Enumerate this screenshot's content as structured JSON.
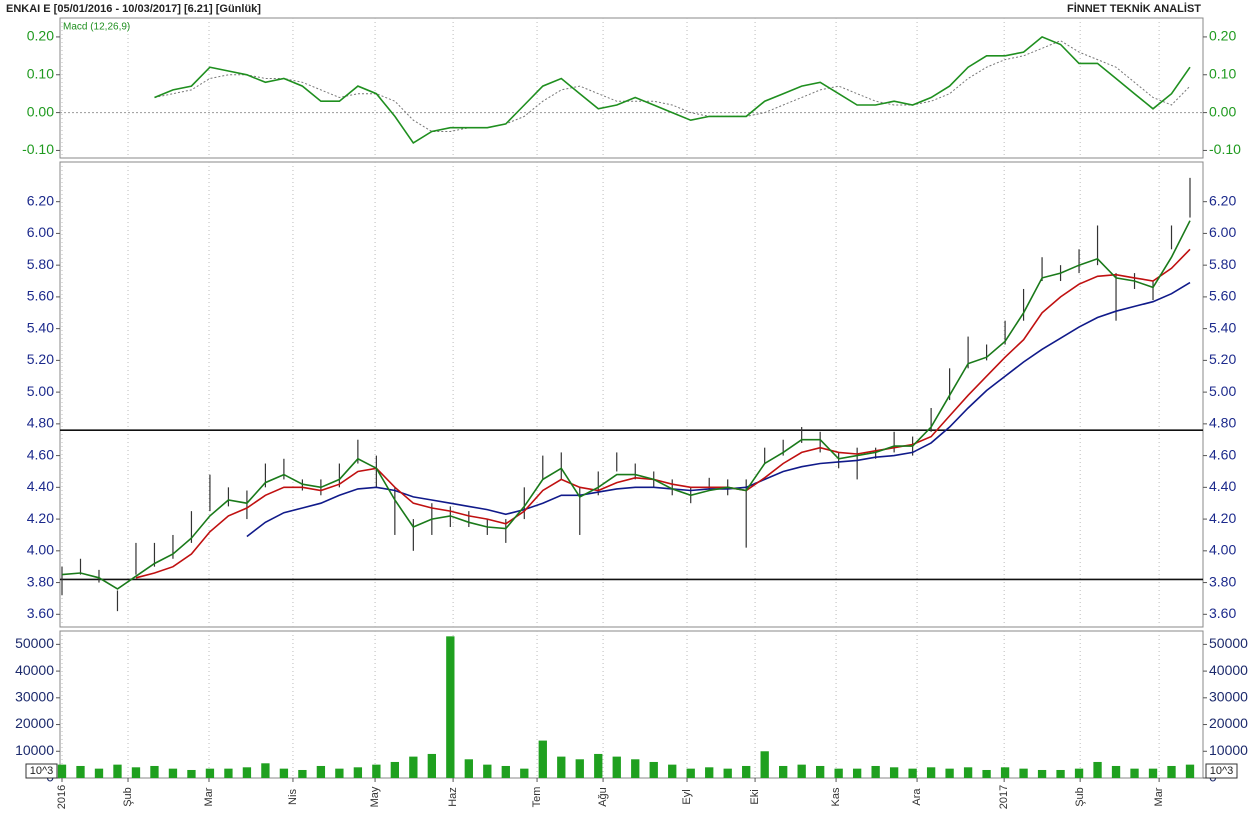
{
  "header": {
    "title": "ENKAI E  [05/01/2016 - 10/03/2017]  [6.21]  [Günlük]",
    "brand": "FİNNET TEKNİK ANALİST"
  },
  "chart_data": [
    {
      "type": "line",
      "label": "Macd (12,26,9)",
      "series": [
        {
          "name": "Macd (12,26,9)",
          "color": "#1f8f1f",
          "values": [
            null,
            null,
            null,
            null,
            null,
            0.04,
            0.06,
            0.07,
            0.12,
            0.11,
            0.1,
            0.08,
            0.09,
            0.07,
            0.03,
            0.03,
            0.07,
            0.05,
            -0.01,
            -0.08,
            -0.05,
            -0.04,
            -0.04,
            -0.04,
            -0.03,
            0.02,
            0.07,
            0.09,
            0.05,
            0.01,
            0.02,
            0.04,
            0.02,
            0.0,
            -0.02,
            -0.01,
            -0.01,
            -0.01,
            0.03,
            0.05,
            0.07,
            0.08,
            0.05,
            0.02,
            0.02,
            0.03,
            0.02,
            0.04,
            0.07,
            0.12,
            0.15,
            0.15,
            0.16,
            0.2,
            0.18,
            0.13,
            0.13,
            0.09,
            0.05,
            0.01,
            0.05,
            0.12
          ]
        },
        {
          "color": "#777777",
          "dashed": true,
          "values": [
            null,
            null,
            null,
            null,
            null,
            0.04,
            0.05,
            0.06,
            0.09,
            0.1,
            0.1,
            0.09,
            0.09,
            0.08,
            0.06,
            0.04,
            0.05,
            0.05,
            0.03,
            -0.02,
            -0.05,
            -0.05,
            -0.04,
            -0.04,
            -0.03,
            -0.01,
            0.03,
            0.06,
            0.07,
            0.05,
            0.03,
            0.03,
            0.03,
            0.02,
            0.0,
            -0.01,
            -0.01,
            -0.01,
            0.0,
            0.02,
            0.04,
            0.06,
            0.07,
            0.05,
            0.03,
            0.02,
            0.02,
            0.03,
            0.05,
            0.09,
            0.12,
            0.14,
            0.15,
            0.17,
            0.19,
            0.16,
            0.14,
            0.12,
            0.08,
            0.04,
            0.02,
            0.07
          ]
        }
      ],
      "ylim": [
        -0.12,
        0.25
      ],
      "yticks": [
        {
          "value": -0.1,
          "label": "-0.10"
        },
        {
          "value": 0,
          "label": "0.00"
        },
        {
          "value": 0.1,
          "label": "0.10"
        },
        {
          "value": 0.2,
          "label": "0.20"
        }
      ],
      "zero_line": 0,
      "label_color": "#1f9a1f"
    },
    {
      "type": "ohlc",
      "bar_color": "#333333",
      "high": [
        3.9,
        3.95,
        3.88,
        3.75,
        4.05,
        4.05,
        4.1,
        4.25,
        4.48,
        4.4,
        4.38,
        4.55,
        4.58,
        4.45,
        4.45,
        4.55,
        4.7,
        4.6,
        4.4,
        4.2,
        4.3,
        4.28,
        4.25,
        4.2,
        4.2,
        4.4,
        4.6,
        4.62,
        4.4,
        4.5,
        4.62,
        4.55,
        4.5,
        4.45,
        4.4,
        4.46,
        4.45,
        4.45,
        4.65,
        4.7,
        4.78,
        4.75,
        4.62,
        4.65,
        4.65,
        4.75,
        4.72,
        4.9,
        5.15,
        5.35,
        5.3,
        5.45,
        5.65,
        5.85,
        5.8,
        5.9,
        6.05,
        5.75,
        5.75,
        5.7,
        6.05,
        6.35
      ],
      "low": [
        3.72,
        3.85,
        3.8,
        3.62,
        3.85,
        3.9,
        3.95,
        4.05,
        4.25,
        4.28,
        4.2,
        4.4,
        4.45,
        4.38,
        4.35,
        4.4,
        4.55,
        4.4,
        4.1,
        4.0,
        4.1,
        4.15,
        4.15,
        4.1,
        4.05,
        4.2,
        4.45,
        4.45,
        4.1,
        4.35,
        4.5,
        4.45,
        4.4,
        4.35,
        4.3,
        4.38,
        4.35,
        4.02,
        4.55,
        4.6,
        4.68,
        4.62,
        4.52,
        4.45,
        4.58,
        4.62,
        4.6,
        4.75,
        4.95,
        5.15,
        5.2,
        5.3,
        5.45,
        5.7,
        5.7,
        5.75,
        5.8,
        5.45,
        5.65,
        5.58,
        5.9,
        6.1
      ],
      "series": [
        {
          "color": "#1a7a1a",
          "values": [
            3.85,
            3.86,
            3.83,
            3.76,
            3.84,
            3.92,
            3.98,
            4.08,
            4.22,
            4.32,
            4.3,
            4.43,
            4.48,
            4.42,
            4.4,
            4.45,
            4.58,
            4.52,
            4.32,
            4.15,
            4.2,
            4.22,
            4.18,
            4.15,
            4.14,
            4.28,
            4.45,
            4.52,
            4.34,
            4.4,
            4.48,
            4.48,
            4.45,
            4.39,
            4.35,
            4.38,
            4.4,
            4.38,
            4.55,
            4.62,
            4.7,
            4.7,
            4.58,
            4.6,
            4.62,
            4.66,
            4.66,
            4.78,
            4.98,
            5.18,
            5.22,
            5.32,
            5.5,
            5.72,
            5.75,
            5.8,
            5.84,
            5.72,
            5.7,
            5.66,
            5.85,
            6.08
          ]
        },
        {
          "color": "#c01010",
          "values": [
            null,
            null,
            null,
            null,
            3.83,
            3.86,
            3.9,
            3.98,
            4.12,
            4.22,
            4.27,
            4.35,
            4.4,
            4.4,
            4.38,
            4.42,
            4.5,
            4.52,
            4.4,
            4.3,
            4.27,
            4.25,
            4.22,
            4.2,
            4.17,
            4.25,
            4.38,
            4.45,
            4.4,
            4.38,
            4.43,
            4.46,
            4.45,
            4.42,
            4.4,
            4.4,
            4.4,
            4.38,
            4.46,
            4.55,
            4.62,
            4.65,
            4.62,
            4.61,
            4.63,
            4.65,
            4.67,
            4.72,
            4.85,
            4.98,
            5.1,
            5.22,
            5.33,
            5.5,
            5.6,
            5.68,
            5.73,
            5.74,
            5.72,
            5.7,
            5.78,
            5.9
          ]
        },
        {
          "color": "#101a8a",
          "values": [
            null,
            null,
            null,
            null,
            null,
            null,
            null,
            null,
            null,
            null,
            4.09,
            4.18,
            4.24,
            4.27,
            4.3,
            4.35,
            4.39,
            4.4,
            4.38,
            4.34,
            4.32,
            4.3,
            4.28,
            4.26,
            4.23,
            4.26,
            4.3,
            4.35,
            4.35,
            4.37,
            4.39,
            4.4,
            4.4,
            4.39,
            4.38,
            4.39,
            4.39,
            4.4,
            4.45,
            4.5,
            4.53,
            4.55,
            4.56,
            4.57,
            4.59,
            4.6,
            4.62,
            4.68,
            4.78,
            4.9,
            5.01,
            5.1,
            5.19,
            5.27,
            5.34,
            5.41,
            5.47,
            5.51,
            5.54,
            5.57,
            5.62,
            5.69
          ]
        }
      ],
      "hlines": [
        4.76,
        3.82
      ],
      "ylim": [
        3.52,
        6.45
      ],
      "yticks": [
        {
          "value": 3.6,
          "label": "3.60"
        },
        {
          "value": 3.8,
          "label": "3.80"
        },
        {
          "value": 4,
          "label": "4.00"
        },
        {
          "value": 4.2,
          "label": "4.20"
        },
        {
          "value": 4.4,
          "label": "4.40"
        },
        {
          "value": 4.6,
          "label": "4.60"
        },
        {
          "value": 4.8,
          "label": "4.80"
        },
        {
          "value": 5,
          "label": "5.00"
        },
        {
          "value": 5.2,
          "label": "5.20"
        },
        {
          "value": 5.4,
          "label": "5.40"
        },
        {
          "value": 5.6,
          "label": "5.60"
        },
        {
          "value": 5.8,
          "label": "5.80"
        },
        {
          "value": 6,
          "label": "6.00"
        },
        {
          "value": 6.2,
          "label": "6.20"
        }
      ],
      "label_color": "#1c2a8c"
    },
    {
      "type": "bar",
      "color": "#1fa01f",
      "unit_label": "10^3",
      "values": [
        5000,
        4500,
        3500,
        5000,
        4000,
        4500,
        3500,
        3000,
        3500,
        3500,
        4000,
        5500,
        3500,
        3000,
        4500,
        3500,
        4000,
        5000,
        6000,
        8000,
        9000,
        53000,
        7000,
        5000,
        4500,
        3500,
        14000,
        8000,
        7000,
        9000,
        8000,
        7000,
        6000,
        5000,
        3500,
        4000,
        3500,
        4500,
        10000,
        4500,
        5000,
        4500,
        3500,
        3500,
        4500,
        4000,
        3500,
        4000,
        3500,
        4000,
        3000,
        4000,
        3500,
        3000,
        3000,
        3500,
        6000,
        4500,
        3500,
        3500,
        4500,
        5000
      ],
      "ylim": [
        0,
        55000
      ],
      "yticks": [
        0,
        10000,
        20000,
        30000,
        40000,
        50000
      ],
      "xlim": [
        0,
        61
      ],
      "xticks": [
        {
          "value": 0,
          "label": "2016"
        },
        {
          "value": 3.57,
          "label": "Şub"
        },
        {
          "value": 7.95,
          "label": "Mar"
        },
        {
          "value": 12.49,
          "label": "Nis"
        },
        {
          "value": 16.93,
          "label": "May"
        },
        {
          "value": 21.15,
          "label": "Haz"
        },
        {
          "value": 25.69,
          "label": "Tem"
        },
        {
          "value": 29.26,
          "label": "Ağu"
        },
        {
          "value": 33.8,
          "label": "Eyl"
        },
        {
          "value": 37.48,
          "label": "Eki"
        },
        {
          "value": 41.86,
          "label": "Kas"
        },
        {
          "value": 46.24,
          "label": "Ara"
        },
        {
          "value": 50.95,
          "label": "2017"
        },
        {
          "value": 55.06,
          "label": "Şub"
        },
        {
          "value": 59.33,
          "label": "Mar"
        }
      ],
      "label_color": "#1c2a6c"
    }
  ]
}
